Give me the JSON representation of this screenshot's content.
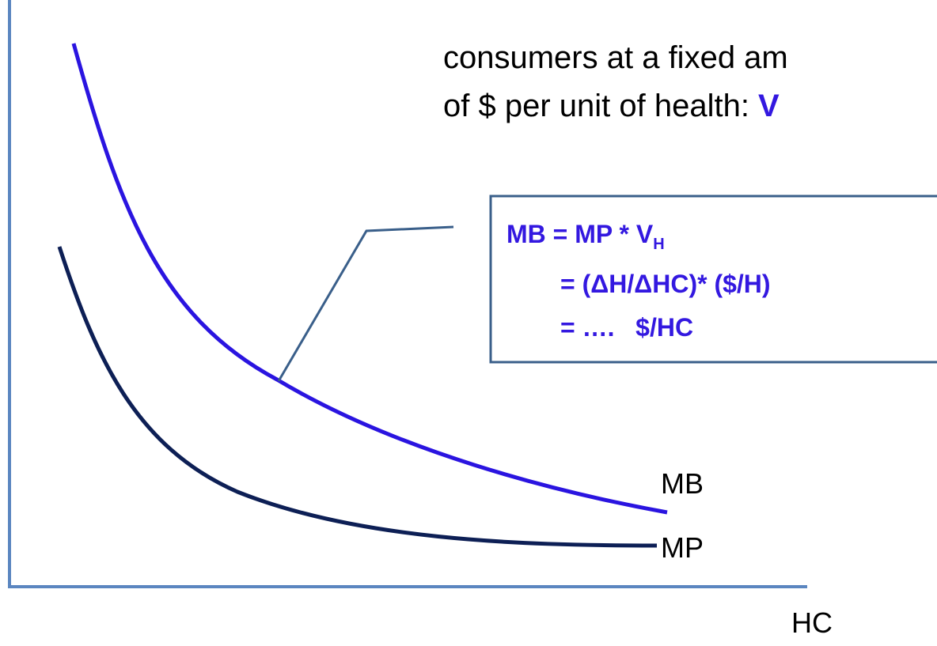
{
  "header": {
    "line1": "consumers at a fixed am",
    "line2": "of $ per unit of health: ",
    "highlight": "V"
  },
  "box": {
    "line1": "MB = MP * V",
    "subscript": "H",
    "line2": "= (ΔH/ΔHC)* ($/H)",
    "line3": "= ….   $/HC"
  },
  "curves": [
    {
      "label": "MB"
    },
    {
      "label": "MP"
    }
  ],
  "x_axis_label": "HC"
}
